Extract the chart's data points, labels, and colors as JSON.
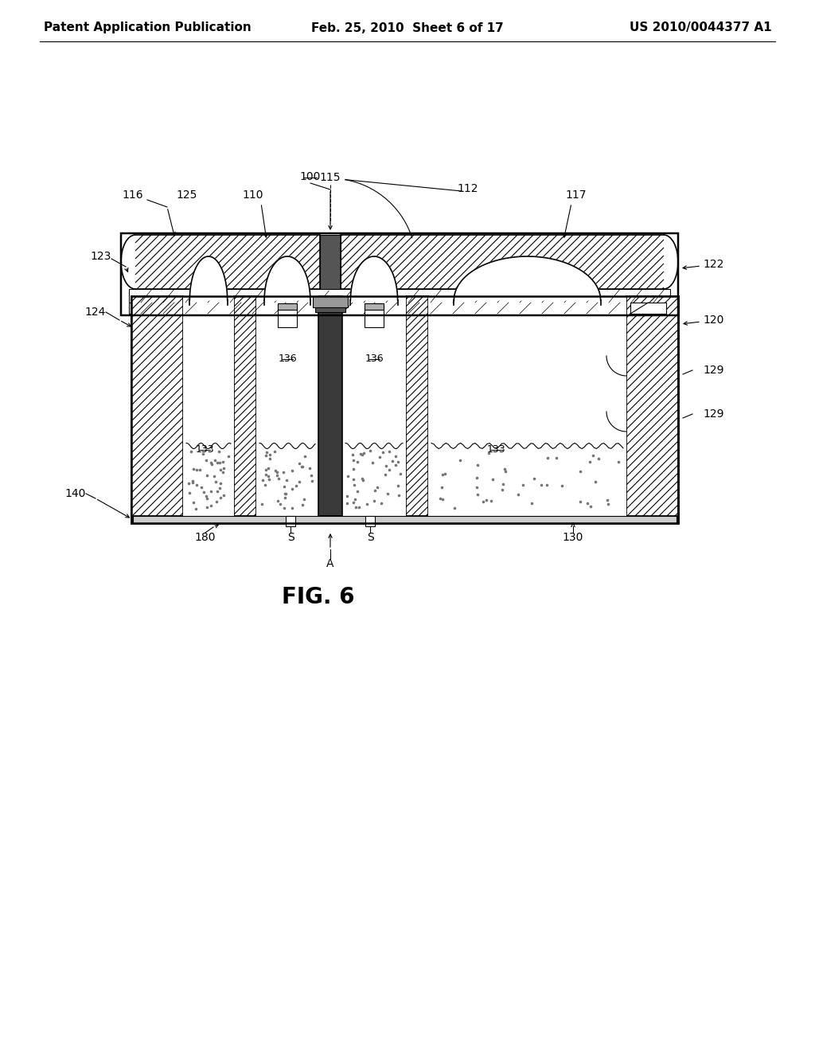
{
  "bg_color": "#ffffff",
  "line_color": "#000000",
  "header_left": "Patent Application Publication",
  "header_mid": "Feb. 25, 2010  Sheet 6 of 17",
  "header_right": "US 2010/0044377 A1",
  "fig_label": "FIG. 6",
  "header_fontsize": 11,
  "label_fontsize": 10,
  "figlabel_fontsize": 20
}
